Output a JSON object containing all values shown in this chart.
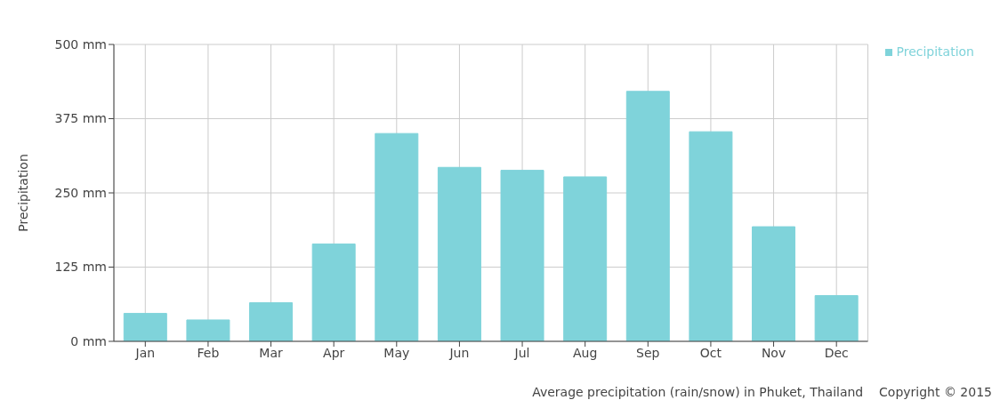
{
  "chart_data": {
    "type": "bar",
    "ylabel": "Precipitation",
    "categories": [
      "Jan",
      "Feb",
      "Mar",
      "Apr",
      "May",
      "Jun",
      "Jul",
      "Aug",
      "Sep",
      "Oct",
      "Nov",
      "Dec"
    ],
    "series": [
      {
        "name": "Precipitation",
        "color": "#7fd3da",
        "values": [
          47,
          36,
          65,
          164,
          350,
          293,
          288,
          277,
          421,
          353,
          193,
          77
        ]
      }
    ],
    "ylim": [
      0,
      500
    ],
    "yticks": [
      {
        "value": 0,
        "label": "0 mm"
      },
      {
        "value": 125,
        "label": "125 mm"
      },
      {
        "value": 250,
        "label": "250 mm"
      },
      {
        "value": 375,
        "label": "375 mm"
      },
      {
        "value": 500,
        "label": "500 mm"
      }
    ],
    "grid": true,
    "legend": "top right",
    "annotations": [
      "Average precipitation (rain/snow) in Phuket, Thailand    Copyright © 2015"
    ]
  }
}
